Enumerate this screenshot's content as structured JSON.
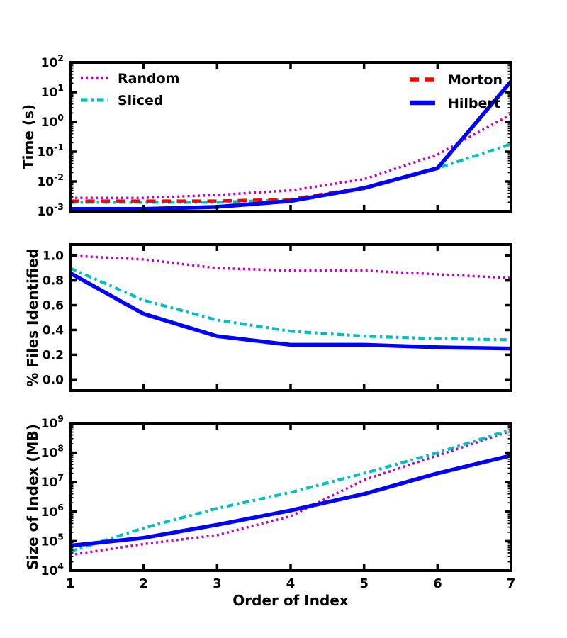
{
  "xlabel": "Order of Index",
  "x_tick_labels": [
    "1",
    "2",
    "3",
    "4",
    "5",
    "6",
    "7"
  ],
  "colors": {
    "random": "#bf00bf",
    "sliced": "#00bfbf",
    "morton": "#ff0000",
    "hilbert": "#0000ff",
    "axis": "#000000",
    "background": "#ffffff"
  },
  "legend": {
    "left_entries": [
      "Random",
      "Sliced"
    ],
    "right_entries": [
      "Morton",
      "Hilbert"
    ]
  },
  "series_styles": [
    {
      "name": "Random",
      "color": "#bf00bf",
      "linestyle": "dotted"
    },
    {
      "name": "Sliced",
      "color": "#00bfbf",
      "linestyle": "dashdot"
    },
    {
      "name": "Morton",
      "color": "#ff0000",
      "linestyle": "dashed"
    },
    {
      "name": "Hilbert",
      "color": "#0000ff",
      "linestyle": "solid"
    }
  ],
  "chart_data": [
    {
      "id": "time",
      "type": "line",
      "ylabel": "Time (s)",
      "yscale": "log",
      "ylim": [
        0.001,
        100
      ],
      "grid": false,
      "legend_position": "top-left and top-right, no frame",
      "ytick_labels": [
        "10^2",
        "10^1",
        "10^0",
        "10^-1",
        "10^-2",
        "10^-3"
      ],
      "x": [
        1,
        2,
        3,
        4,
        5,
        6,
        7
      ],
      "series": [
        {
          "name": "Random",
          "values": [
            0.0028,
            0.0028,
            0.0035,
            0.005,
            0.012,
            0.08,
            1.8
          ]
        },
        {
          "name": "Sliced",
          "values": [
            0.002,
            0.002,
            0.002,
            0.0024,
            0.006,
            0.028,
            0.18
          ]
        },
        {
          "name": "Morton",
          "values": [
            0.0022,
            0.0022,
            0.0022,
            0.0025,
            0.0062,
            0.029,
            22
          ]
        },
        {
          "name": "Hilbert",
          "values": [
            0.0012,
            0.0012,
            0.0014,
            0.0022,
            0.006,
            0.028,
            23
          ]
        }
      ]
    },
    {
      "id": "files",
      "type": "line",
      "ylabel": "% Files Identified",
      "yscale": "linear",
      "ylim": [
        -0.09,
        1.09
      ],
      "grid": false,
      "ytick_labels": [
        "1.0",
        "0.8",
        "0.6",
        "0.4",
        "0.2",
        "0.0"
      ],
      "ytick_values": [
        1.0,
        0.8,
        0.6,
        0.4,
        0.2,
        0.0
      ],
      "x": [
        1,
        2,
        3,
        4,
        5,
        6,
        7
      ],
      "series": [
        {
          "name": "Random",
          "values": [
            1.0,
            0.97,
            0.9,
            0.88,
            0.88,
            0.85,
            0.82
          ]
        },
        {
          "name": "Sliced",
          "values": [
            0.9,
            0.64,
            0.48,
            0.39,
            0.35,
            0.33,
            0.32
          ]
        },
        {
          "name": "Morton",
          "values": [
            0.86,
            0.53,
            0.35,
            0.28,
            0.28,
            0.26,
            0.25
          ]
        },
        {
          "name": "Hilbert",
          "values": [
            0.86,
            0.53,
            0.35,
            0.28,
            0.28,
            0.26,
            0.25
          ]
        }
      ]
    },
    {
      "id": "size",
      "type": "line",
      "ylabel": "Size of Index (MB)",
      "yscale": "log",
      "ylim": [
        10000,
        1000000000
      ],
      "grid": false,
      "ytick_labels": [
        "10^9",
        "10^8",
        "10^7",
        "10^6",
        "10^5",
        "10^4"
      ],
      "x": [
        1,
        2,
        3,
        4,
        5,
        6,
        7
      ],
      "series": [
        {
          "name": "Random",
          "values": [
            34000,
            80000,
            160000,
            700000,
            12000000,
            80000000,
            550000000
          ]
        },
        {
          "name": "Sliced",
          "values": [
            45000,
            280000,
            1300000,
            4500000,
            20000000,
            100000000,
            600000000
          ]
        },
        {
          "name": "Morton",
          "values": [
            70000,
            130000,
            360000,
            1100000,
            4000000,
            20000000,
            80000000
          ]
        },
        {
          "name": "Hilbert",
          "values": [
            70000,
            130000,
            360000,
            1100000,
            4000000,
            20000000,
            80000000
          ]
        }
      ]
    }
  ]
}
